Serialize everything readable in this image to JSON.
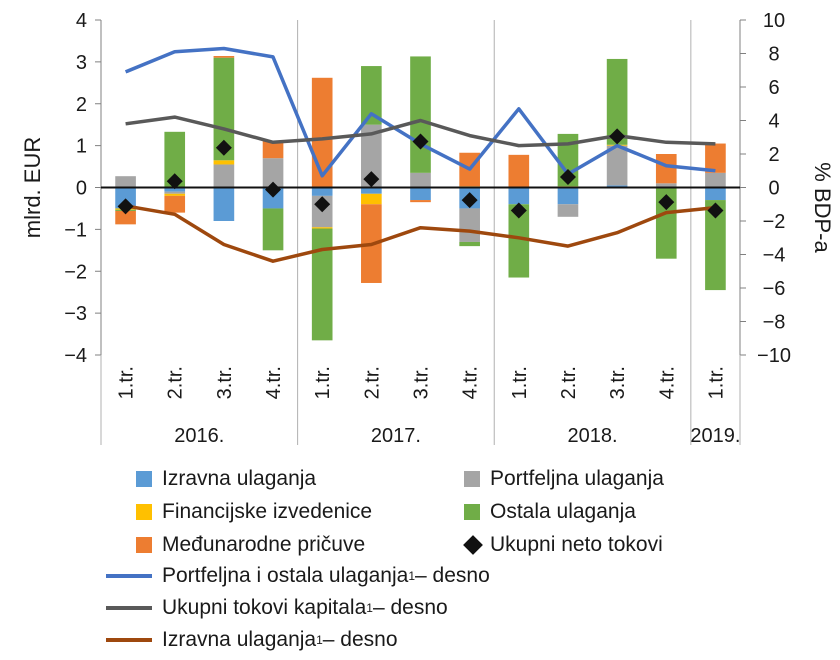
{
  "chart_data": {
    "type": "bar",
    "categories": [
      "1.tr.",
      "2.tr.",
      "3.tr.",
      "4.tr.",
      "1.tr.",
      "2.tr.",
      "3.tr.",
      "4.tr.",
      "1.tr.",
      "2.tr.",
      "3.tr.",
      "4.tr.",
      "1.tr."
    ],
    "groups": [
      {
        "label": "2016.",
        "count": 4
      },
      {
        "label": "2017.",
        "count": 4
      },
      {
        "label": "2018.",
        "count": 4
      },
      {
        "label": "2019.",
        "count": 1
      }
    ],
    "ylabel_left": "mlrd. EUR",
    "ylabel_right": "% BDP-a",
    "ylim_left": [
      -4,
      4
    ],
    "ylim_right": [
      -10,
      10
    ],
    "yticks_left": [
      4,
      3,
      2,
      1,
      0,
      -1,
      -2,
      -3,
      -4
    ],
    "yticks_right": [
      10,
      8,
      6,
      4,
      2,
      0,
      -2,
      -4,
      -6,
      -8,
      -10
    ],
    "stacked_series": [
      {
        "key": "izravna",
        "name": "Izravna ulaganja",
        "color": "#5b9bd5",
        "values": [
          -0.5,
          -0.1,
          -0.8,
          -0.5,
          -0.2,
          -0.15,
          -0.3,
          -0.5,
          -0.4,
          -0.4,
          0.05,
          0.0,
          -0.3
        ]
      },
      {
        "key": "portfeljna",
        "name": "Portfeljna ulaganja",
        "color": "#a5a5a5",
        "values": [
          0.27,
          -0.05,
          0.55,
          0.7,
          -0.75,
          1.5,
          0.35,
          -0.8,
          0.0,
          -0.3,
          0.95,
          0.1,
          0.35
        ]
      },
      {
        "key": "izvedenice",
        "name": "Financijske izvedenice",
        "color": "#ffc000",
        "values": [
          -0.03,
          -0.05,
          0.1,
          0.0,
          -0.03,
          -0.25,
          0.0,
          0.03,
          0.0,
          0.03,
          0.02,
          0.0,
          0.0
        ]
      },
      {
        "key": "ostala",
        "name": "Ostala ulaganja",
        "color": "#70ad47",
        "values": [
          -0.03,
          1.33,
          2.45,
          -1.0,
          -2.67,
          1.4,
          2.78,
          -0.1,
          -1.75,
          1.25,
          2.05,
          -1.7,
          -2.15
        ]
      },
      {
        "key": "pricuve",
        "name": "Međunarodne pričuve",
        "color": "#ed7d31",
        "values": [
          -0.32,
          -0.4,
          0.04,
          0.41,
          2.62,
          -1.88,
          -0.05,
          0.8,
          0.78,
          0.0,
          0.0,
          0.7,
          0.7
        ]
      }
    ],
    "markers": {
      "name": "Ukupni neto tokovi",
      "color": "#111111",
      "values": [
        -0.45,
        0.15,
        0.95,
        -0.05,
        -0.4,
        0.2,
        1.1,
        -0.3,
        -0.55,
        0.25,
        1.22,
        -0.35,
        -0.55
      ]
    },
    "lines_right": [
      {
        "name": "Portfeljna i ostala ulaganja",
        "suffix": " – desno",
        "color": "#4472c4",
        "values": [
          6.9,
          8.1,
          8.3,
          7.8,
          0.7,
          4.4,
          2.6,
          1.1,
          4.7,
          0.8,
          2.5,
          1.3,
          1.0
        ]
      },
      {
        "name": "Ukupni tokovi kapitala",
        "suffix": " – desno",
        "color": "#595959",
        "values": [
          3.8,
          4.2,
          3.5,
          2.7,
          2.9,
          3.2,
          4.0,
          3.1,
          2.5,
          2.6,
          3.1,
          2.7,
          2.6
        ]
      },
      {
        "name": "Izravna ulaganja",
        "suffix": " – desno",
        "color": "#9e480e",
        "values": [
          -1.1,
          -1.6,
          -3.4,
          -4.4,
          -3.7,
          -3.4,
          -2.4,
          -2.6,
          -3.0,
          -3.5,
          -2.7,
          -1.5,
          -1.2
        ]
      }
    ],
    "grid": false,
    "legend_position": "bottom"
  }
}
